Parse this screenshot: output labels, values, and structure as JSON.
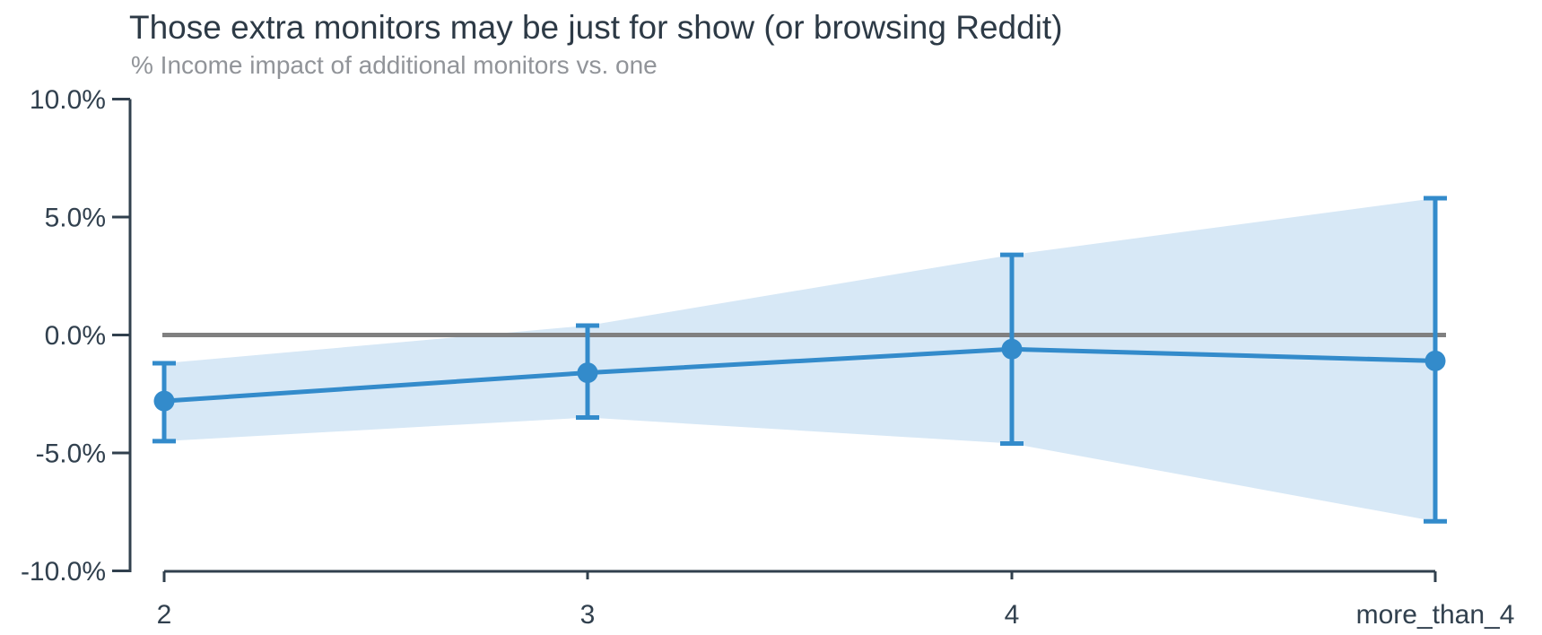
{
  "chart": {
    "title": "Those extra monitors may be just for show (or browsing Reddit)",
    "subtitle": "% Income impact of additional monitors vs. one"
  },
  "chart_data": {
    "type": "line",
    "title": "Those extra monitors may be just for show (or browsing Reddit)",
    "subtitle": "% Income impact of additional monitors vs. one",
    "categories": [
      "2",
      "3",
      "4",
      "more_than_4"
    ],
    "series": [
      {
        "name": "% income impact of additional monitors vs. one",
        "values": [
          -2.8,
          -1.6,
          -0.6,
          -1.1
        ],
        "ci_low": [
          -4.5,
          -3.5,
          -4.6,
          -7.9
        ],
        "ci_high": [
          -1.2,
          0.4,
          3.4,
          5.8
        ]
      }
    ],
    "xlabel": "",
    "ylabel": "",
    "ylim": [
      -10,
      10
    ],
    "ytick_values": [
      10,
      5,
      0,
      -5,
      -10
    ],
    "ytick_labels": [
      "10.0%",
      "5.0%",
      "0.0%",
      "-5.0%",
      "-10.0%"
    ],
    "zero_line": true,
    "grid": false,
    "legend": "none",
    "marker": "circle",
    "band": "confidence-interval",
    "colors": {
      "line": "#338bcb",
      "marker": "#338bcb",
      "band": "#d7e8f6",
      "zero_line": "#808080",
      "axis": "#31404e",
      "tick_label": "#31404e",
      "title": "#2d3a46",
      "subtitle": "#919499",
      "background": "#ffffff"
    }
  }
}
